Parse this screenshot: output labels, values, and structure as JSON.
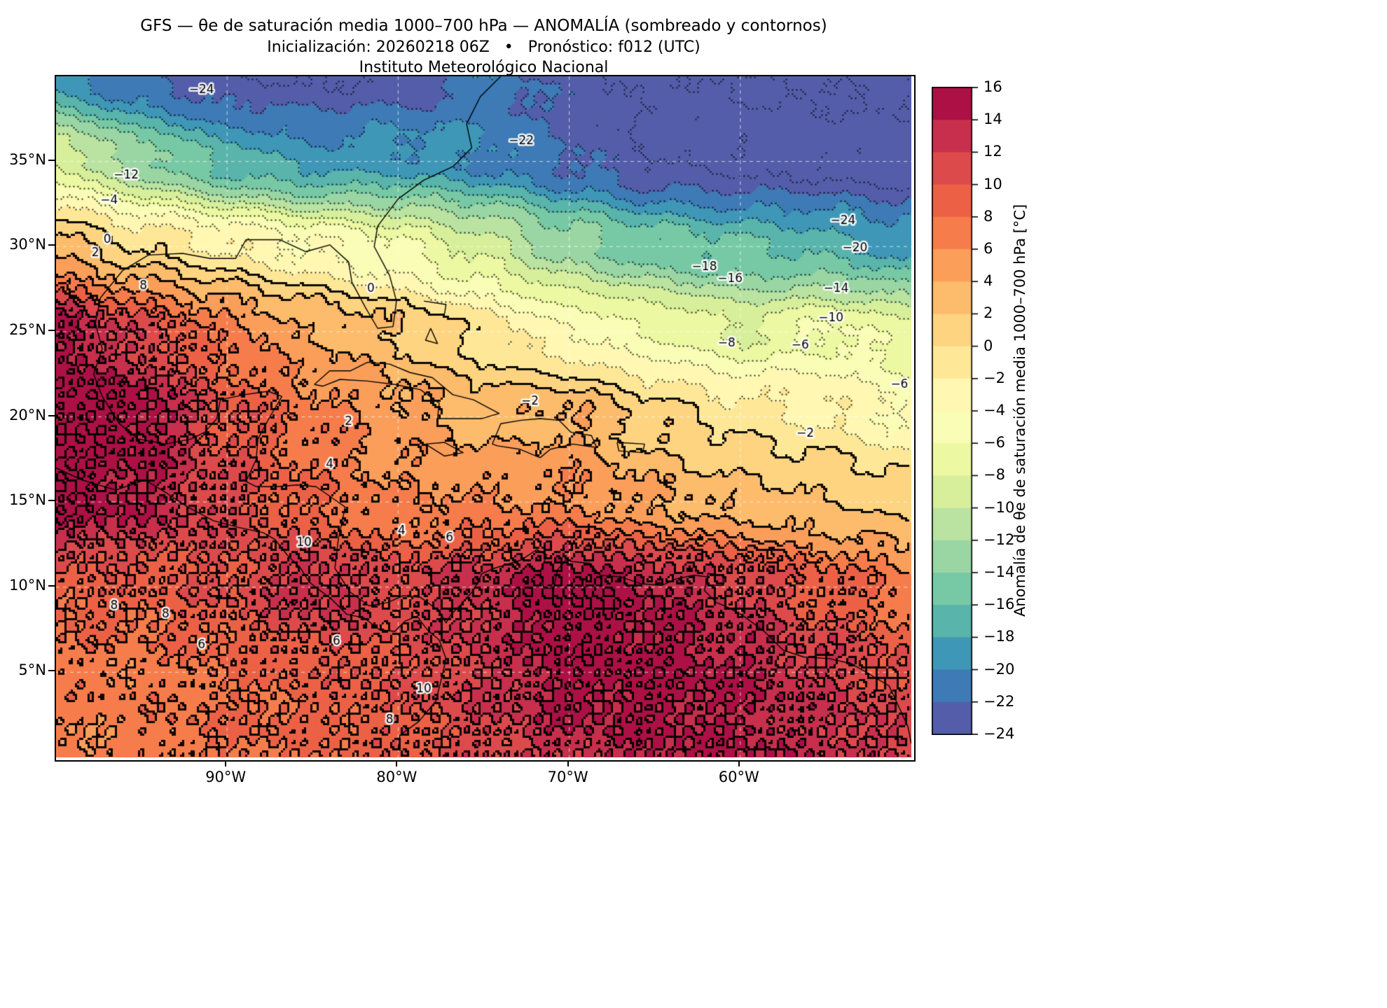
{
  "header": {
    "title": "GFS — θe de saturación media 1000–700 hPa — ANOMALÍA (sombreado y contornos)",
    "subtitle": "Inicialización: 20260218 06Z   •   Pronóstico: f012 (UTC)",
    "institution": "Instituto Meteorológico Nacional"
  },
  "chart_data": {
    "type": "heatmap",
    "title": "GFS — θe de saturación media 1000–700 hPa — ANOMALÍA (sombreado y contornos)",
    "init": "20260218 06Z",
    "forecast_hour": "f012 (UTC)",
    "extent": {
      "lon_min": -100,
      "lon_max": -50,
      "lat_min": 0,
      "lat_max": 40
    },
    "contour_interval": 2,
    "level_min": -24,
    "level_max": 16,
    "grid_lats": [
      40,
      35,
      30,
      25,
      20,
      15,
      10,
      5,
      0
    ],
    "grid_lons": [
      -100,
      -95,
      -90,
      -85,
      -80,
      -75,
      -70,
      -65,
      -60,
      -55,
      -50
    ],
    "anomaly_values": [
      [
        -19,
        -22,
        -24,
        -24,
        -23,
        -21,
        -23,
        -25,
        -26,
        -26,
        -26
      ],
      [
        -8,
        -13,
        -17,
        -19,
        -19,
        -20,
        -22,
        -24,
        -25,
        -25,
        -25
      ],
      [
        3,
        0,
        -2,
        -4,
        -6,
        -9,
        -13,
        -15,
        -16,
        -17,
        -19
      ],
      [
        15,
        11,
        7,
        4,
        2,
        -1,
        -4,
        -6,
        -8,
        -6,
        -7
      ],
      [
        16,
        15,
        10,
        7,
        5,
        3,
        4,
        1,
        -1,
        -2,
        -4
      ],
      [
        16,
        14,
        11,
        8,
        6,
        6,
        6,
        4,
        3,
        2,
        1
      ],
      [
        9,
        9,
        10,
        13,
        11,
        13,
        16,
        14,
        12,
        9,
        7
      ],
      [
        7,
        7,
        8,
        9,
        10,
        12,
        15,
        15,
        14,
        12,
        10
      ],
      [
        6,
        7,
        8,
        8,
        9,
        11,
        13,
        14,
        14,
        13,
        12
      ]
    ],
    "x_ticks": [
      {
        "value": -90,
        "label": "90°W"
      },
      {
        "value": -80,
        "label": "80°W"
      },
      {
        "value": -70,
        "label": "70°W"
      },
      {
        "value": -60,
        "label": "60°W"
      }
    ],
    "y_ticks": [
      {
        "value": 35,
        "label": "35°N"
      },
      {
        "value": 30,
        "label": "30°N"
      },
      {
        "value": 25,
        "label": "25°N"
      },
      {
        "value": 20,
        "label": "20°N"
      },
      {
        "value": 15,
        "label": "15°N"
      },
      {
        "value": 10,
        "label": "10°N"
      },
      {
        "value": 5,
        "label": "5°N"
      }
    ],
    "colorbar": {
      "label": "Anomalía de θe de saturación media 1000–700 hPa [°C]",
      "tick_values": [
        16,
        14,
        12,
        10,
        8,
        6,
        4,
        2,
        0,
        -2,
        -4,
        -6,
        -8,
        -10,
        -12,
        -14,
        -16,
        -18,
        -20,
        -22,
        -24
      ],
      "tick_labels": [
        "16",
        "14",
        "12",
        "10",
        "8",
        "6",
        "4",
        "2",
        "0",
        "−2",
        "−4",
        "−6",
        "−8",
        "−10",
        "−12",
        "−14",
        "−16",
        "−18",
        "−20",
        "−22",
        "−24"
      ],
      "palette_stops_low_to_high": [
        "#5e4fa2",
        "#3288bd",
        "#66c2a5",
        "#abdda4",
        "#e6f598",
        "#ffffbf",
        "#fee08b",
        "#fdae61",
        "#f46d43",
        "#d53e4f",
        "#9e0142"
      ]
    },
    "contour_labels": [
      {
        "text": "−24",
        "lon": -91.5,
        "lat": 39.2
      },
      {
        "text": "−22",
        "lon": -72.8,
        "lat": 36.2
      },
      {
        "text": "−12",
        "lon": -95.9,
        "lat": 34.2
      },
      {
        "text": "−4",
        "lon": -96.9,
        "lat": 32.7
      },
      {
        "text": "0",
        "lon": -97.0,
        "lat": 30.4
      },
      {
        "text": "2",
        "lon": -97.7,
        "lat": 29.6
      },
      {
        "text": "8",
        "lon": -94.9,
        "lat": 27.7
      },
      {
        "text": "0",
        "lon": -81.6,
        "lat": 27.5
      },
      {
        "text": "−24",
        "lon": -54.0,
        "lat": 31.5
      },
      {
        "text": "−20",
        "lon": -53.3,
        "lat": 29.9
      },
      {
        "text": "−18",
        "lon": -62.1,
        "lat": 28.8
      },
      {
        "text": "−16",
        "lon": -60.6,
        "lat": 28.1
      },
      {
        "text": "−14",
        "lon": -54.4,
        "lat": 27.5
      },
      {
        "text": "−10",
        "lon": -54.7,
        "lat": 25.8
      },
      {
        "text": "−8",
        "lon": -60.8,
        "lat": 24.3
      },
      {
        "text": "−6",
        "lon": -56.5,
        "lat": 24.2
      },
      {
        "text": "−6",
        "lon": -50.7,
        "lat": 21.9
      },
      {
        "text": "−2",
        "lon": -72.3,
        "lat": 20.9
      },
      {
        "text": "−2",
        "lon": -56.2,
        "lat": 19.0
      },
      {
        "text": "2",
        "lon": -82.9,
        "lat": 19.7
      },
      {
        "text": "4",
        "lon": -84.0,
        "lat": 17.2
      },
      {
        "text": "4",
        "lon": -79.8,
        "lat": 13.3
      },
      {
        "text": "6",
        "lon": -77.0,
        "lat": 12.9
      },
      {
        "text": "10",
        "lon": -85.5,
        "lat": 12.6
      },
      {
        "text": "8",
        "lon": -96.6,
        "lat": 8.9
      },
      {
        "text": "8",
        "lon": -93.6,
        "lat": 8.4
      },
      {
        "text": "6",
        "lon": -91.5,
        "lat": 6.6
      },
      {
        "text": "10",
        "lon": -78.5,
        "lat": 4.0
      },
      {
        "text": "8",
        "lon": -80.5,
        "lat": 2.2
      },
      {
        "text": "6",
        "lon": -83.6,
        "lat": 6.8
      }
    ],
    "coastlines": [
      [
        [
          -74.0,
          40.0
        ],
        [
          -75.2,
          38.8
        ],
        [
          -76.0,
          37.2
        ],
        [
          -75.7,
          35.8
        ],
        [
          -76.8,
          34.7
        ],
        [
          -78.5,
          33.9
        ],
        [
          -80.0,
          32.8
        ],
        [
          -81.2,
          31.2
        ],
        [
          -81.4,
          30.0
        ],
        [
          -80.5,
          28.3
        ],
        [
          -80.1,
          26.8
        ],
        [
          -80.3,
          25.3
        ],
        [
          -81.2,
          25.2
        ],
        [
          -81.9,
          26.4
        ],
        [
          -82.7,
          27.9
        ],
        [
          -82.9,
          29.1
        ],
        [
          -84.0,
          30.1
        ],
        [
          -85.4,
          29.7
        ],
        [
          -86.9,
          30.4
        ],
        [
          -88.9,
          30.4
        ],
        [
          -89.5,
          29.3
        ],
        [
          -91.0,
          29.3
        ],
        [
          -92.6,
          29.6
        ],
        [
          -94.6,
          29.5
        ],
        [
          -96.1,
          28.6
        ],
        [
          -97.4,
          27.0
        ],
        [
          -97.7,
          25.5
        ],
        [
          -97.3,
          24.0
        ],
        [
          -97.8,
          22.5
        ],
        [
          -97.3,
          21.2
        ],
        [
          -96.3,
          19.6
        ],
        [
          -95.2,
          18.7
        ],
        [
          -93.6,
          18.4
        ],
        [
          -92.1,
          18.7
        ],
        [
          -91.3,
          19.1
        ],
        [
          -90.6,
          19.9
        ],
        [
          -90.4,
          21.0
        ],
        [
          -89.0,
          21.3
        ],
        [
          -87.6,
          21.5
        ],
        [
          -86.8,
          21.2
        ],
        [
          -87.5,
          20.0
        ],
        [
          -88.2,
          18.7
        ],
        [
          -88.3,
          17.5
        ],
        [
          -88.9,
          16.2
        ],
        [
          -88.3,
          15.9
        ],
        [
          -87.1,
          15.9
        ],
        [
          -85.9,
          16.0
        ],
        [
          -84.8,
          15.9
        ],
        [
          -83.8,
          15.2
        ],
        [
          -83.1,
          14.7
        ],
        [
          -83.5,
          12.8
        ],
        [
          -83.7,
          11.1
        ],
        [
          -82.8,
          9.7
        ],
        [
          -81.7,
          8.9
        ],
        [
          -80.6,
          9.1
        ],
        [
          -79.7,
          9.5
        ],
        [
          -78.7,
          9.4
        ],
        [
          -77.6,
          8.6
        ],
        [
          -77.2,
          7.9
        ],
        [
          -76.9,
          8.4
        ],
        [
          -76.3,
          9.0
        ],
        [
          -75.6,
          9.8
        ],
        [
          -75.1,
          10.8
        ],
        [
          -74.4,
          11.1
        ],
        [
          -72.8,
          11.6
        ],
        [
          -71.9,
          12.2
        ],
        [
          -71.3,
          11.9
        ],
        [
          -71.7,
          10.9
        ],
        [
          -71.5,
          10.0
        ],
        [
          -70.9,
          9.9
        ],
        [
          -70.7,
          11.0
        ],
        [
          -70.2,
          11.6
        ],
        [
          -69.8,
          11.5
        ],
        [
          -68.8,
          11.4
        ],
        [
          -68.2,
          10.7
        ],
        [
          -67.0,
          10.6
        ],
        [
          -65.8,
          10.2
        ],
        [
          -64.6,
          10.1
        ],
        [
          -63.7,
          10.5
        ],
        [
          -62.7,
          10.7
        ],
        [
          -61.9,
          10.6
        ],
        [
          -62.1,
          9.8
        ],
        [
          -61.4,
          9.1
        ],
        [
          -60.7,
          8.8
        ],
        [
          -59.8,
          8.3
        ],
        [
          -58.6,
          7.4
        ],
        [
          -57.5,
          6.3
        ],
        [
          -56.3,
          5.9
        ],
        [
          -54.8,
          5.8
        ],
        [
          -53.5,
          5.5
        ],
        [
          -52.3,
          4.8
        ],
        [
          -51.3,
          4.2
        ],
        [
          -50.7,
          2.9
        ],
        [
          -50.2,
          1.8
        ],
        [
          -50.0,
          0.8
        ]
      ],
      [
        [
          -100.0,
          17.0
        ],
        [
          -98.5,
          16.3
        ],
        [
          -96.5,
          15.7
        ],
        [
          -94.8,
          16.3
        ],
        [
          -93.5,
          15.5
        ],
        [
          -92.3,
          14.7
        ],
        [
          -90.8,
          13.9
        ],
        [
          -89.3,
          13.5
        ],
        [
          -87.9,
          13.2
        ],
        [
          -87.2,
          12.8
        ],
        [
          -86.5,
          11.9
        ],
        [
          -85.7,
          11.1
        ],
        [
          -85.2,
          10.3
        ],
        [
          -84.7,
          9.9
        ],
        [
          -83.9,
          9.3
        ],
        [
          -83.0,
          8.4
        ],
        [
          -82.0,
          8.2
        ],
        [
          -81.1,
          7.5
        ],
        [
          -80.2,
          7.4
        ],
        [
          -79.6,
          8.0
        ],
        [
          -78.9,
          8.3
        ],
        [
          -78.3,
          7.5
        ],
        [
          -77.6,
          6.9
        ],
        [
          -77.2,
          5.8
        ],
        [
          -77.5,
          4.5
        ],
        [
          -77.8,
          3.3
        ],
        [
          -78.8,
          2.1
        ],
        [
          -79.9,
          1.3
        ],
        [
          -80.0,
          0.5
        ]
      ],
      [
        [
          -84.9,
          21.9
        ],
        [
          -84.0,
          22.7
        ],
        [
          -82.8,
          22.7
        ],
        [
          -81.8,
          23.2
        ],
        [
          -80.5,
          23.1
        ],
        [
          -79.3,
          22.6
        ],
        [
          -78.0,
          22.3
        ],
        [
          -76.8,
          21.3
        ],
        [
          -75.6,
          21.0
        ],
        [
          -74.1,
          20.2
        ],
        [
          -75.1,
          19.9
        ],
        [
          -76.3,
          19.9
        ],
        [
          -77.7,
          19.9
        ],
        [
          -77.6,
          20.8
        ],
        [
          -78.7,
          21.6
        ],
        [
          -80.2,
          21.9
        ],
        [
          -81.8,
          22.1
        ],
        [
          -83.4,
          22.2
        ],
        [
          -84.4,
          21.8
        ],
        [
          -84.9,
          21.9
        ]
      ],
      [
        [
          -74.5,
          18.4
        ],
        [
          -74.0,
          19.6
        ],
        [
          -72.8,
          19.8
        ],
        [
          -71.7,
          19.9
        ],
        [
          -70.6,
          19.8
        ],
        [
          -69.9,
          19.1
        ],
        [
          -68.7,
          18.9
        ],
        [
          -68.4,
          18.2
        ],
        [
          -69.8,
          18.4
        ],
        [
          -71.1,
          18.1
        ],
        [
          -71.7,
          17.6
        ],
        [
          -72.9,
          18.1
        ],
        [
          -74.2,
          18.3
        ],
        [
          -74.5,
          18.4
        ]
      ],
      [
        [
          -78.4,
          18.4
        ],
        [
          -77.3,
          18.5
        ],
        [
          -76.2,
          17.9
        ],
        [
          -77.3,
          17.7
        ],
        [
          -78.4,
          18.4
        ]
      ],
      [
        [
          -67.2,
          18.5
        ],
        [
          -65.6,
          18.4
        ],
        [
          -65.7,
          17.9
        ],
        [
          -67.1,
          18.0
        ],
        [
          -67.2,
          18.5
        ]
      ],
      [
        [
          -61.9,
          10.8
        ],
        [
          -61.0,
          10.7
        ],
        [
          -61.0,
          10.1
        ],
        [
          -61.9,
          10.1
        ],
        [
          -61.9,
          10.8
        ]
      ],
      [
        [
          -78.1,
          25.2
        ],
        [
          -77.7,
          24.3
        ],
        [
          -78.4,
          24.5
        ],
        [
          -78.1,
          25.2
        ]
      ],
      [
        [
          -78.5,
          26.8
        ],
        [
          -77.2,
          26.6
        ],
        [
          -77.3,
          26.0
        ]
      ]
    ]
  }
}
